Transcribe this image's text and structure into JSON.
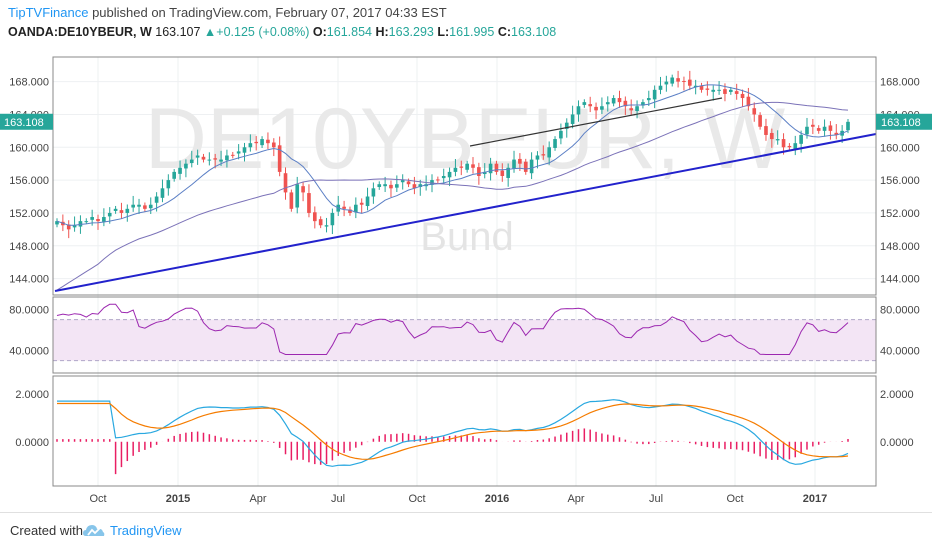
{
  "header": {
    "brand": "TipTVFinance",
    "published": "published on TradingView.com, February 07, 2017 04:33 EST",
    "symbol": "OANDA:DE10YBEUR, W",
    "last": "163.107",
    "change": "+0.125 (+0.08%)",
    "open_label": "O:",
    "open": "161.854",
    "high_label": "H:",
    "high": "163.293",
    "low_label": "L:",
    "low": "161.995",
    "close_label": "C:",
    "close": "163.108"
  },
  "watermark": {
    "symbol": "DE10YBEUR, W",
    "name": "Bund"
  },
  "footer": {
    "created": "Created with",
    "brand": "TradingView"
  },
  "colors": {
    "up": "#26a69a",
    "down": "#ef5350",
    "ma_fast": "#5b7fc5",
    "ma_slow": "#7b72b8",
    "trend": "#2222cc",
    "rsi": "#9c27b0",
    "macd": "#29a8e0",
    "signal": "#f57c00",
    "hist": "#e91e63"
  },
  "chart_data": [
    {
      "type": "candlestick",
      "panel": "price",
      "yticks": [
        "144.000",
        "148.000",
        "152.000",
        "156.000",
        "160.000",
        "164.000",
        "168.000"
      ],
      "ylim": [
        142,
        171
      ],
      "xticks": [
        "Oct",
        "2015",
        "Apr",
        "Jul",
        "Oct",
        "2016",
        "Apr",
        "Jul",
        "Oct",
        "2017"
      ],
      "last_price_label": "163.108",
      "close_path": [
        151,
        150.5,
        150,
        150.5,
        151,
        151,
        151.5,
        151,
        151.5,
        152,
        152.5,
        152,
        152.5,
        153,
        153,
        152.5,
        153,
        154,
        155,
        156,
        157,
        157.5,
        158,
        158.5,
        159,
        158.5,
        158.5,
        158.5,
        158.5,
        159,
        159,
        159.5,
        160,
        160.5,
        160.5,
        161,
        160.5,
        160,
        157,
        154.5,
        152.5,
        155.5,
        154.5,
        152,
        151,
        150.5,
        150.5,
        152,
        153,
        152.5,
        152,
        153,
        153,
        154,
        155,
        155.5,
        155.5,
        155,
        155.5,
        156,
        155.5,
        155,
        155.5,
        155.5,
        156,
        156,
        156.5,
        157,
        157.5,
        157.5,
        158,
        157.5,
        156.5,
        157,
        158,
        157,
        156.5,
        157.5,
        158.5,
        158,
        157,
        158.5,
        159,
        159,
        160,
        161,
        162,
        163,
        164,
        165,
        165.5,
        165,
        164.5,
        165,
        165.5,
        166,
        165.5,
        165,
        164.5,
        165,
        165.5,
        166,
        167,
        167.5,
        168,
        168.5,
        168,
        168,
        167.5,
        167.5,
        167,
        167,
        167,
        167,
        166.5,
        167,
        166.5,
        166,
        165,
        164,
        162.5,
        161.5,
        161,
        161,
        160,
        160,
        160.5,
        161.5,
        162.5,
        162.5,
        162,
        162.5,
        162,
        161.5,
        162,
        163.1
      ],
      "trendlines": [
        {
          "name": "uptrend support",
          "from": [
            "2014-08",
            142.2
          ],
          "to": [
            "2017-03",
            161.3
          ]
        },
        {
          "name": "neckline",
          "from": [
            "2015-11",
            160.2
          ],
          "to": [
            "2016-10",
            165.7
          ]
        }
      ]
    },
    {
      "type": "line",
      "panel": "rsi",
      "yticks": [
        "40.0000",
        "80.0000"
      ],
      "band": [
        30,
        70
      ],
      "ylim": [
        18,
        92
      ]
    },
    {
      "type": "line+bar",
      "panel": "macd",
      "yticks": [
        "0.0000",
        "2.0000"
      ],
      "ylim": [
        -1.85,
        2.75
      ]
    }
  ]
}
